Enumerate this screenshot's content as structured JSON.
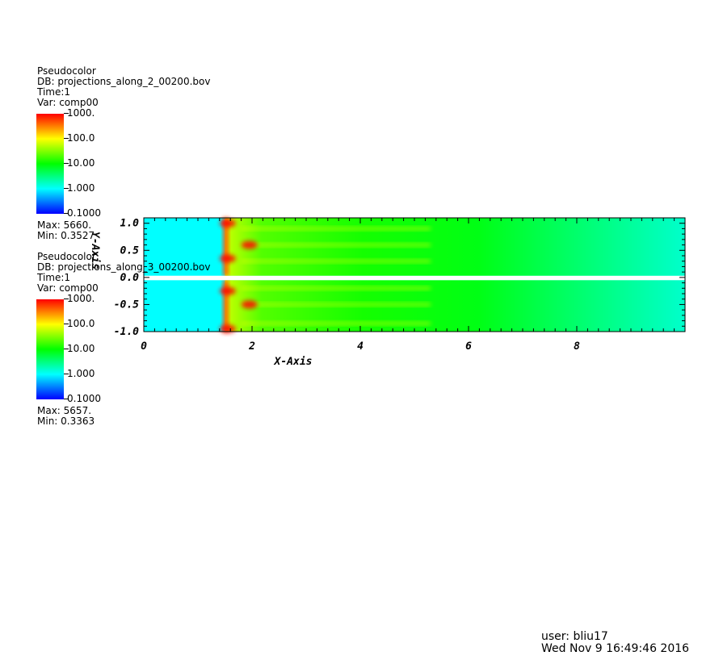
{
  "legends": [
    {
      "title": "Pseudocolor",
      "db": "DB: projections_along_2_00200.bov",
      "time": "Time:1",
      "var": "Var: comp00",
      "ticks": [
        "1000.",
        "100.0",
        "10.00",
        "1.000",
        "0.1000"
      ],
      "max": "Max: 5660.",
      "min": "Min: 0.3527"
    },
    {
      "title": "Pseudocolor",
      "db": "DB: projections_along_3_00200.bov",
      "time": "Time:1",
      "var": "Var: comp00",
      "ticks": [
        "1000.",
        "100.0",
        "10.00",
        "1.000",
        "0.1000"
      ],
      "max": "Max: 5657.",
      "min": "Min: 0.3363"
    }
  ],
  "footer": {
    "user": "user: bliu17",
    "date": "Wed Nov  9 16:49:46 2016"
  },
  "colormap": [
    "#0000ff",
    "#00ffff",
    "#00ff00",
    "#ffff00",
    "#ff0000"
  ],
  "chart_data": {
    "type": "heatmap",
    "xlabel": "X-Axis",
    "ylabel": "Y-Axis",
    "xlim": [
      0,
      10
    ],
    "ylim": [
      -1,
      1.1
    ],
    "x_ticks": [
      0,
      2,
      4,
      6,
      8
    ],
    "y_ticks": [
      1.0,
      0.5,
      0.0,
      -0.5,
      -1.0
    ],
    "x_tick_labels": [
      "0",
      "2",
      "4",
      "6",
      "8"
    ],
    "y_tick_labels": [
      "1.0",
      "0.5",
      "0.0",
      "-0.5",
      "-1.0"
    ],
    "color_scale": "log",
    "color_range": [
      0.1,
      1000
    ],
    "series": [
      {
        "y_range": [
          0.03,
          1.1
        ],
        "shock_x": 1.5,
        "background_level": 1.0,
        "peak_level": 1000,
        "bright_spots": [
          [
            1.55,
            1.0
          ],
          [
            1.95,
            0.6
          ],
          [
            1.55,
            0.35
          ]
        ],
        "jet_y": [
          0.9,
          0.6,
          0.3
        ]
      },
      {
        "y_range": [
          -1.0,
          -0.05
        ],
        "shock_x": 1.5,
        "background_level": 1.0,
        "peak_level": 1000,
        "bright_spots": [
          [
            1.55,
            -0.95
          ],
          [
            1.95,
            -0.5
          ],
          [
            1.55,
            -0.25
          ]
        ],
        "jet_y": [
          -0.2,
          -0.5,
          -0.85
        ]
      }
    ]
  }
}
